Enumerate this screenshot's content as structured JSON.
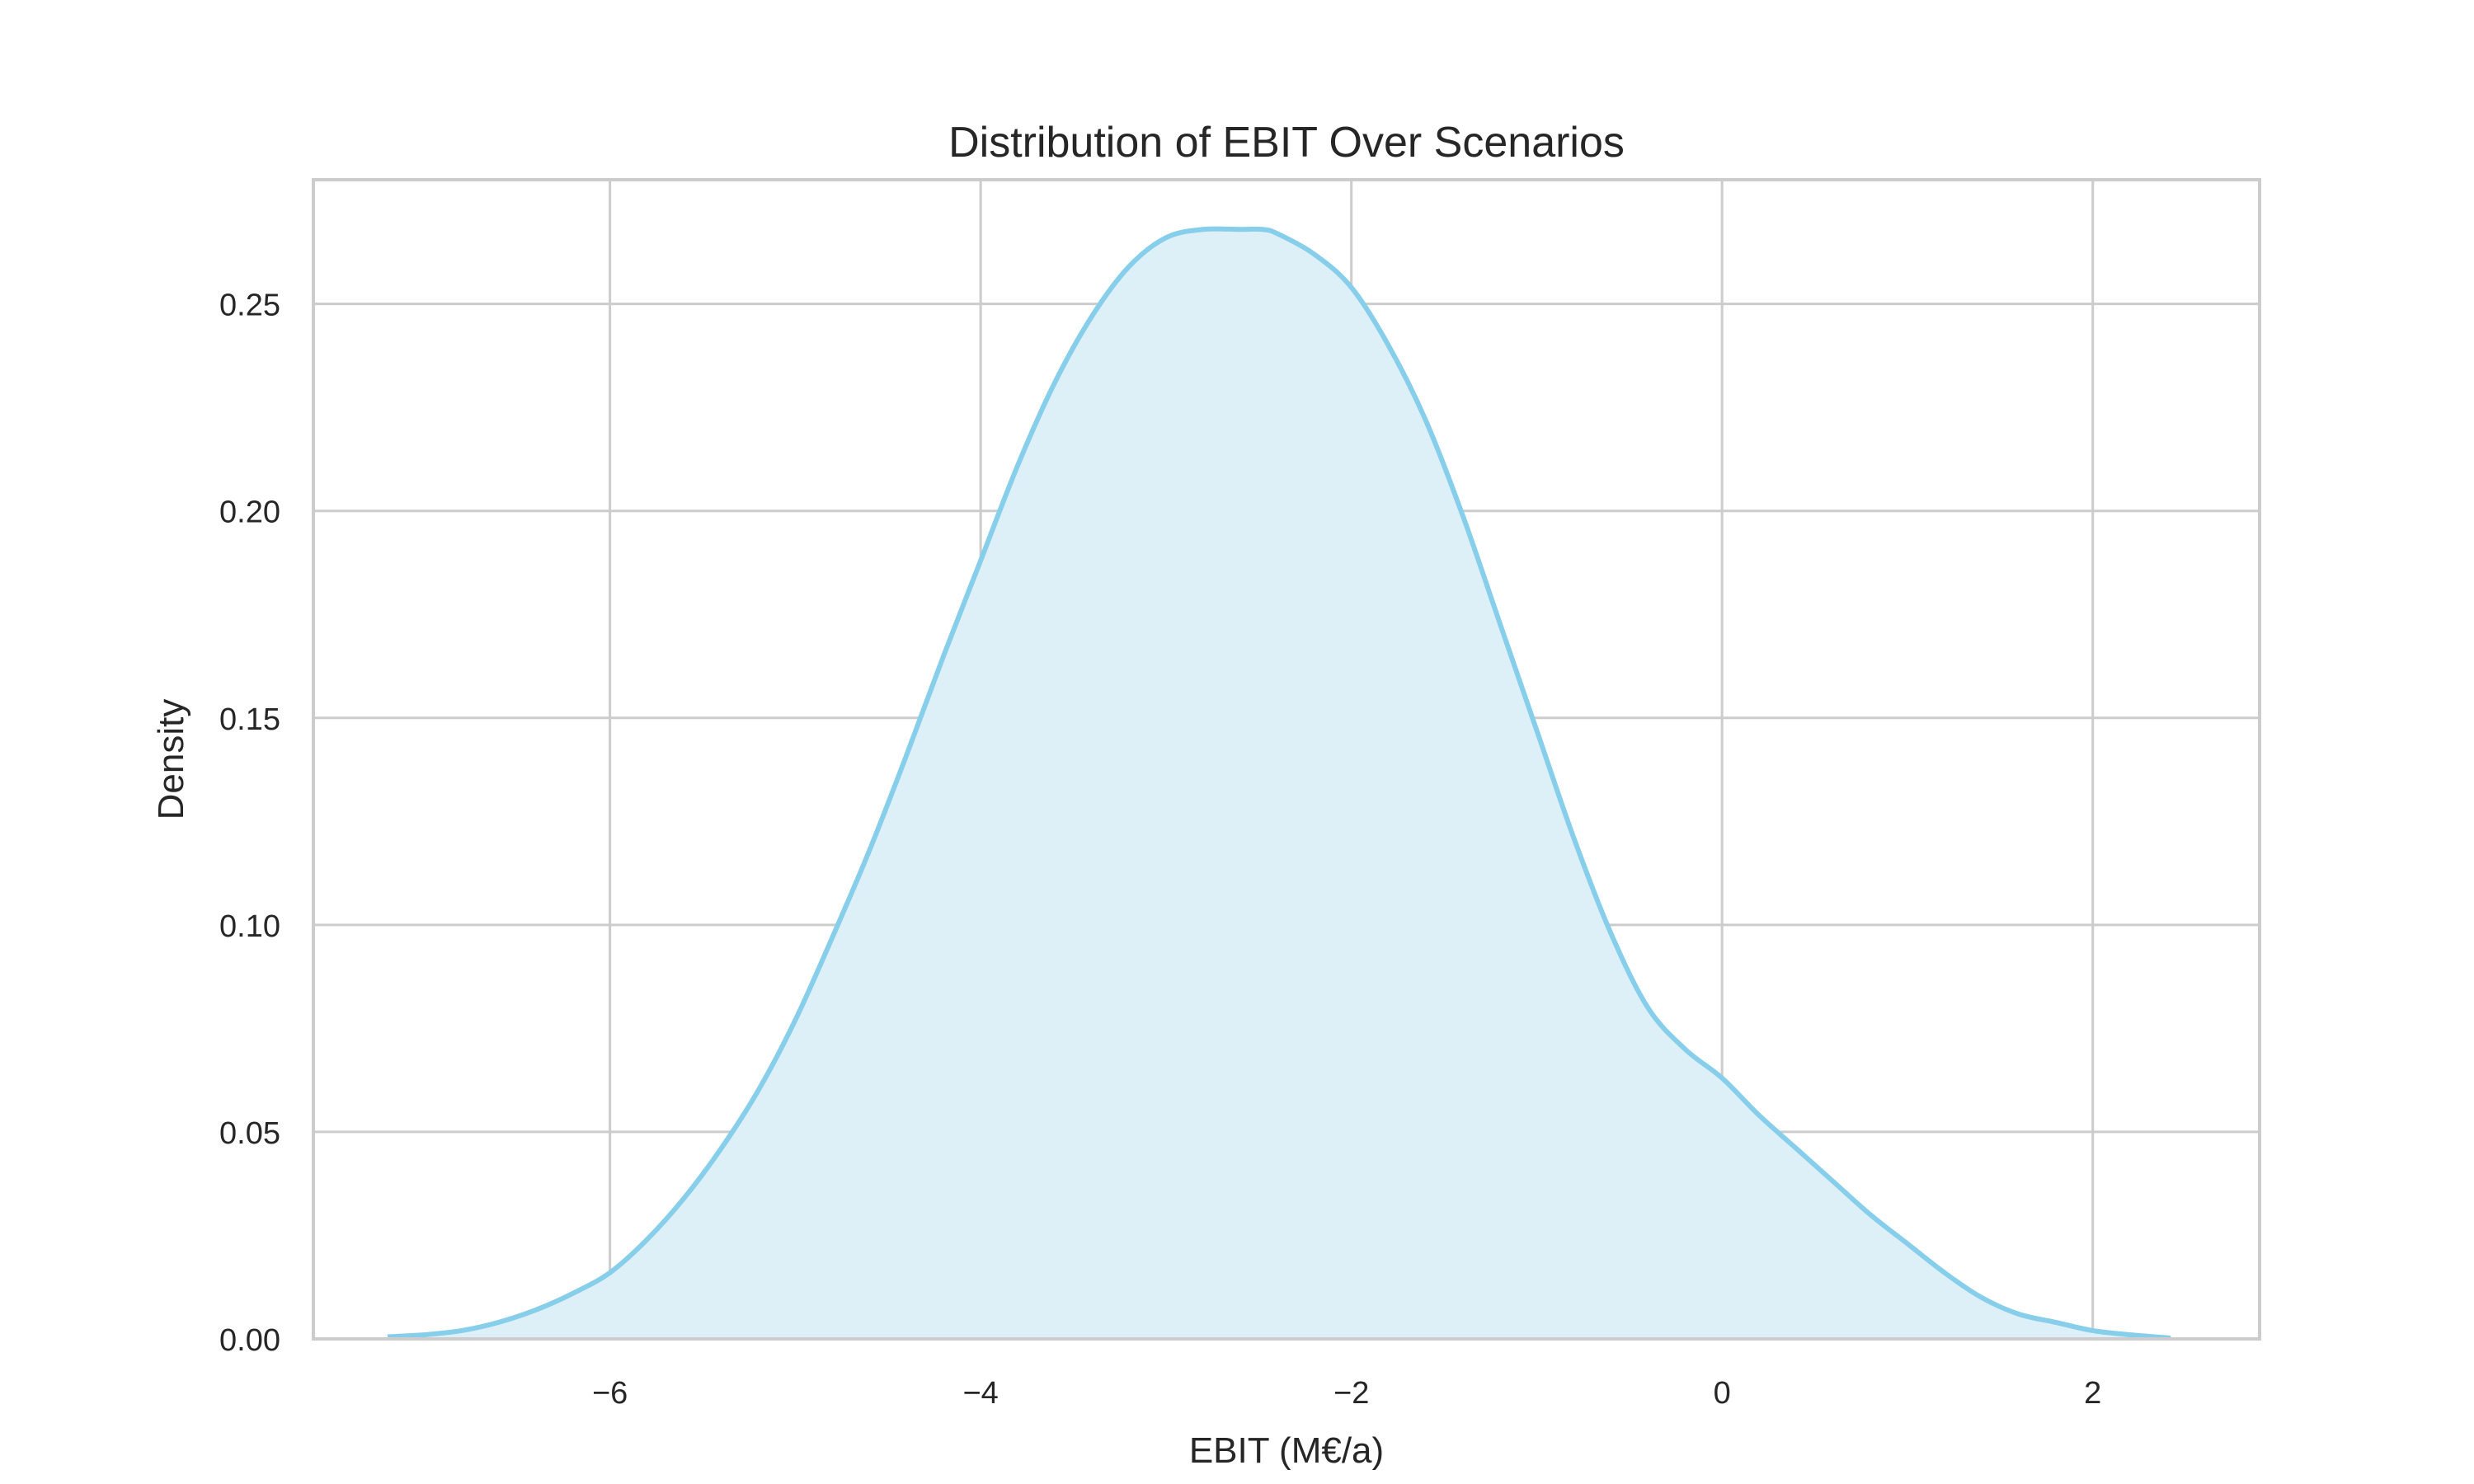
{
  "chart_data": {
    "type": "area",
    "title": "Distribution of EBIT Over Scenarios",
    "xlabel": "EBIT (M€/a)",
    "ylabel": "Density",
    "xlim": [
      -7.6,
      2.9
    ],
    "ylim": [
      0,
      0.28
    ],
    "x_ticks": [
      -6,
      -4,
      -2,
      0,
      2
    ],
    "x_tick_labels": [
      "−6",
      "−4",
      "−2",
      "0",
      "2"
    ],
    "y_ticks": [
      0,
      0.05,
      0.1,
      0.15,
      0.2,
      0.25
    ],
    "y_tick_labels": [
      "0.00",
      "0.05",
      "0.10",
      "0.15",
      "0.20",
      "0.25"
    ],
    "grid": true,
    "legend": "none",
    "line_color": "#87ceeb",
    "fill_color": "#ddf0f8",
    "series": [
      {
        "x": [
          -7.2,
          -7.0,
          -6.8,
          -6.6,
          -6.4,
          -6.2,
          -6.0,
          -5.8,
          -5.6,
          -5.4,
          -5.2,
          -5.0,
          -4.8,
          -4.6,
          -4.4,
          -4.2,
          -4.0,
          -3.8,
          -3.6,
          -3.4,
          -3.2,
          -3.0,
          -2.8,
          -2.6,
          -2.48,
          -2.4,
          -2.2,
          -2.0,
          -1.8,
          -1.6,
          -1.4,
          -1.2,
          -1.0,
          -0.8,
          -0.6,
          -0.4,
          -0.2,
          0.0,
          0.2,
          0.4,
          0.6,
          0.8,
          1.0,
          1.2,
          1.4,
          1.6,
          1.8,
          2.0,
          2.2,
          2.42
        ],
        "y": [
          0.0005,
          0.001,
          0.002,
          0.004,
          0.007,
          0.011,
          0.016,
          0.024,
          0.034,
          0.046,
          0.06,
          0.077,
          0.097,
          0.118,
          0.141,
          0.165,
          0.188,
          0.211,
          0.231,
          0.247,
          0.259,
          0.266,
          0.268,
          0.268,
          0.268,
          0.267,
          0.262,
          0.254,
          0.24,
          0.222,
          0.199,
          0.173,
          0.147,
          0.121,
          0.098,
          0.08,
          0.07,
          0.063,
          0.054,
          0.046,
          0.038,
          0.03,
          0.023,
          0.016,
          0.01,
          0.006,
          0.004,
          0.002,
          0.001,
          0.0002
        ]
      }
    ]
  }
}
